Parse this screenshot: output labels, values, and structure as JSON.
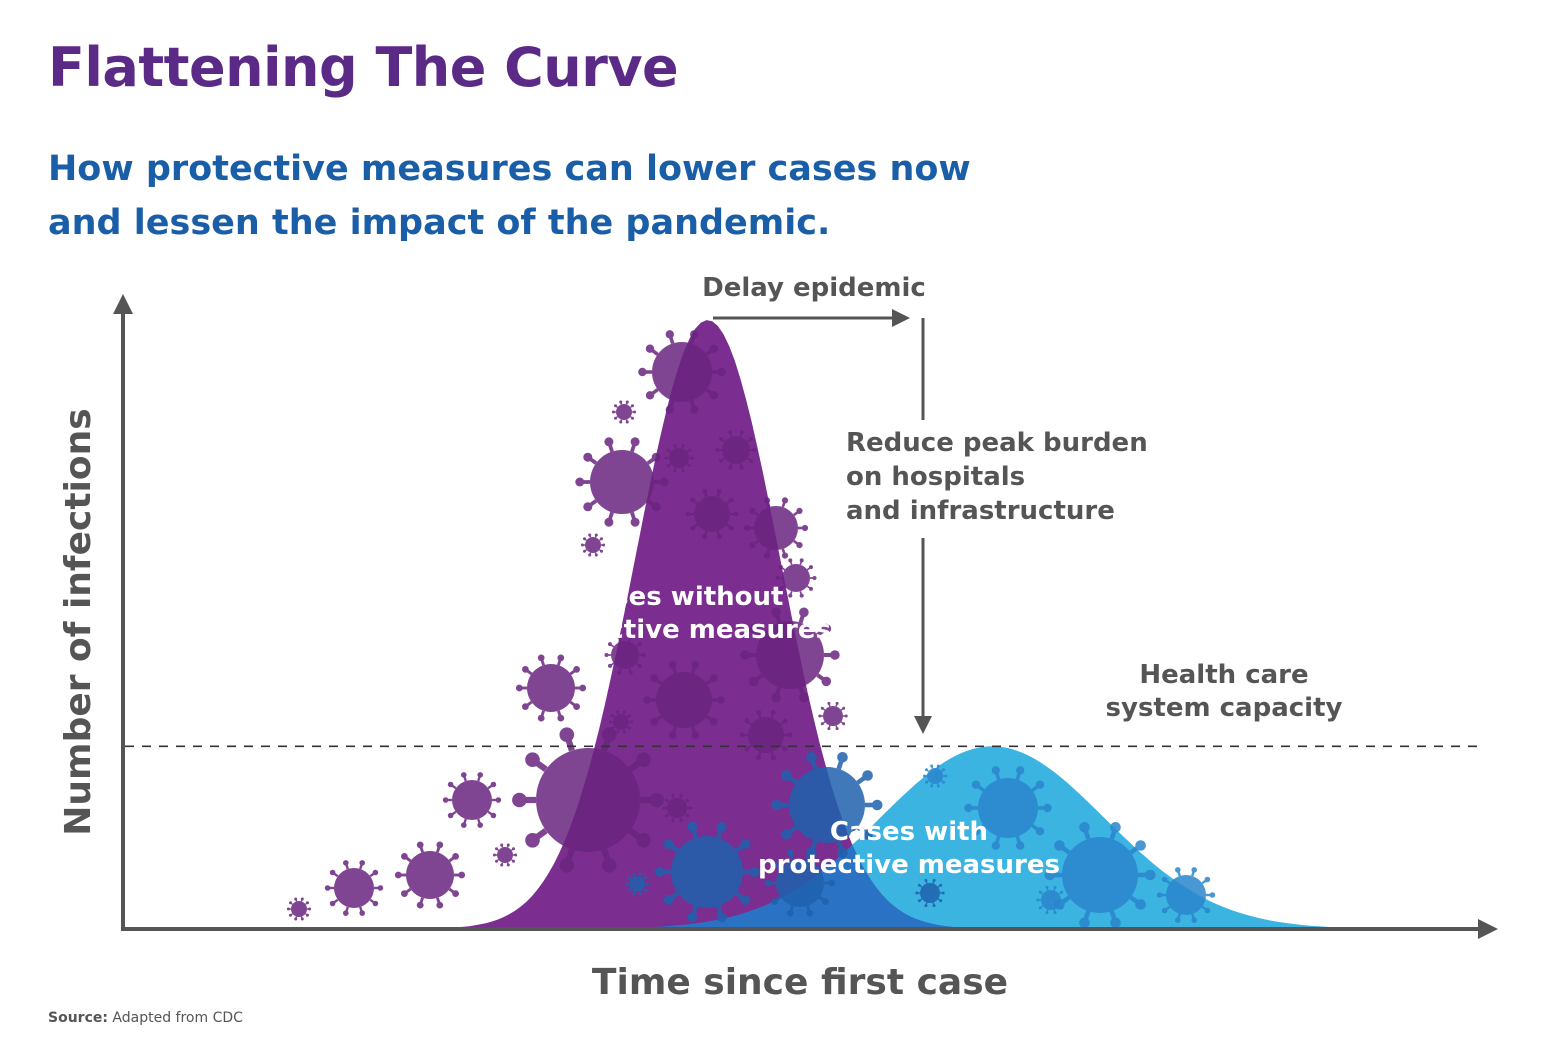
{
  "title": "Flattening The Curve",
  "subtitle": {
    "line1": "How protective measures can lower cases now",
    "line2": "and lessen the impact of the pandemic."
  },
  "chart_data": {
    "type": "area",
    "xlabel": "Time since first case",
    "ylabel": "Number of infections",
    "grid": false,
    "series": [
      {
        "name": "Cases without protective measures",
        "peak_x": 0.43,
        "peak_y": 1.0,
        "width": 0.11,
        "color": "#7b2d90"
      },
      {
        "name": "Cases with protective measures",
        "peak_x": 0.64,
        "peak_y": 0.3,
        "width": 0.17,
        "color": "#3cb4e2"
      }
    ],
    "overlap_color": "#2a72c4",
    "capacity_line": {
      "label_line1": "Health care",
      "label_line2": "system capacity",
      "y": 0.3
    },
    "annotations": {
      "delay": "Delay epidemic",
      "reduce_line1": "Reduce peak burden",
      "reduce_line2": "on hospitals",
      "reduce_line3": "and infrastructure",
      "without_line1": "Cases without",
      "without_line2": "protective measures",
      "with_line1": "Cases with",
      "with_line2": "protective measures"
    }
  },
  "source": {
    "label": "Source:",
    "text": "Adapted from CDC"
  },
  "colors": {
    "title": "#5b2a86",
    "subtitle": "#1a5ea8",
    "axis": "#555555",
    "text": "#555555"
  }
}
